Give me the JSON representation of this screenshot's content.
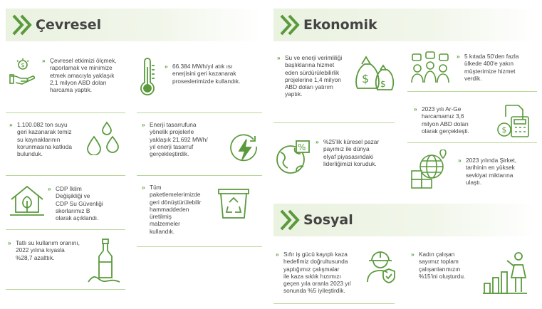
{
  "sections": {
    "cevresel": "Çevresel",
    "ekonomik": "Ekonomik",
    "sosyal": "Sosyal"
  },
  "cevresel": {
    "items": [
      {
        "icon": "money-hand-icon",
        "text": "Çevresel etkimizi ölçmek,\nraporlamak ve minimize\netmek amacıyla yaklaşık\n2,1 milyon ABD doları\nharcama yaptık."
      },
      {
        "icon": "thermometer-icon",
        "text": "66.384 MWh/yıl atık ısı\nenerjisini geri kazanarak\nproseslerimizde kullandık."
      },
      {
        "icon": "water-drops-icon",
        "text": "1.100.082 ton suyu\ngeri kazanarak temiz\nsu kaynaklarının\nkorunmasına katkıda\nbulunduk."
      },
      {
        "icon": "energy-bolt-icon",
        "text": "Enerji tasarrufuna\nyönelik projelerle\nyaklaşık 21.692 MWh/\nyıl enerji tasarruf\ngerçekleştirdik."
      },
      {
        "icon": "eco-house-icon",
        "text": "CDP İklim\nDeğişikliği ve\nCDP Su Güvenliği\nskorlarımız B\nolarak açıklandı."
      },
      {
        "icon": "recycle-bin-icon",
        "text": "Tüm\npaketlemelerimizde\ngeri dönüştürülebilir\nhammaddeden\nüretilmiş\nmalzemeler\nkullandık."
      },
      {
        "icon": "bottle-icon",
        "text": "Tatlı su kullanım oranını,\n2022 yılına kıyasla\n%28,7 azalttık."
      }
    ]
  },
  "ekonomik": {
    "items": [
      {
        "icon": "money-bags-icon",
        "text": "Su ve enerji verimliliği\nbaşlıklarına hizmet\neden sürdürülebilirlik\nprojelerine 1,4 milyon\nABD doları yatırım\nyaptık."
      },
      {
        "icon": "customers-icon",
        "text": "5 kıtada 50'den fazla\nülkede 400'e yakın\nmüşterimize hizmet\nverdik."
      },
      {
        "icon": "calculator-icon",
        "text": "2023 yılı Ar-Ge\nharcamamız 3,6\nmilyon ABD doları\nolarak gerçekleşti."
      },
      {
        "icon": "globe-percent-icon",
        "text": "%25'lik küresel pazar\npayımız ile dünya\nelyaf piyasasındaki\nliderliğimizi koruduk."
      },
      {
        "icon": "globe-shipping-icon",
        "text": "2023 yılında Şirket,\ntarihinin en yüksek\nsevkiyat miktarına\nulaştı."
      }
    ]
  },
  "sosyal": {
    "items": [
      {
        "icon": "safety-worker-icon",
        "text": "Sıfır iş gücü kayıplı kaza\nhedefimiz doğrultusunda\nyaptığımız çalışmalar\nile kaza sıklık hızımızı\ngeçen yıla oranla 2023 yıl\nsonunda %5 iyileştirdik."
      },
      {
        "icon": "woman-growth-icon",
        "text": "Kadın çalışan\nsayımız toplam\nçalışanlarımızın\n%15'ini oluşturdu."
      }
    ]
  },
  "colors": {
    "accent": "#5a9a3c",
    "header_bg": "#eaf2e0",
    "rule": "#b9d79b"
  }
}
